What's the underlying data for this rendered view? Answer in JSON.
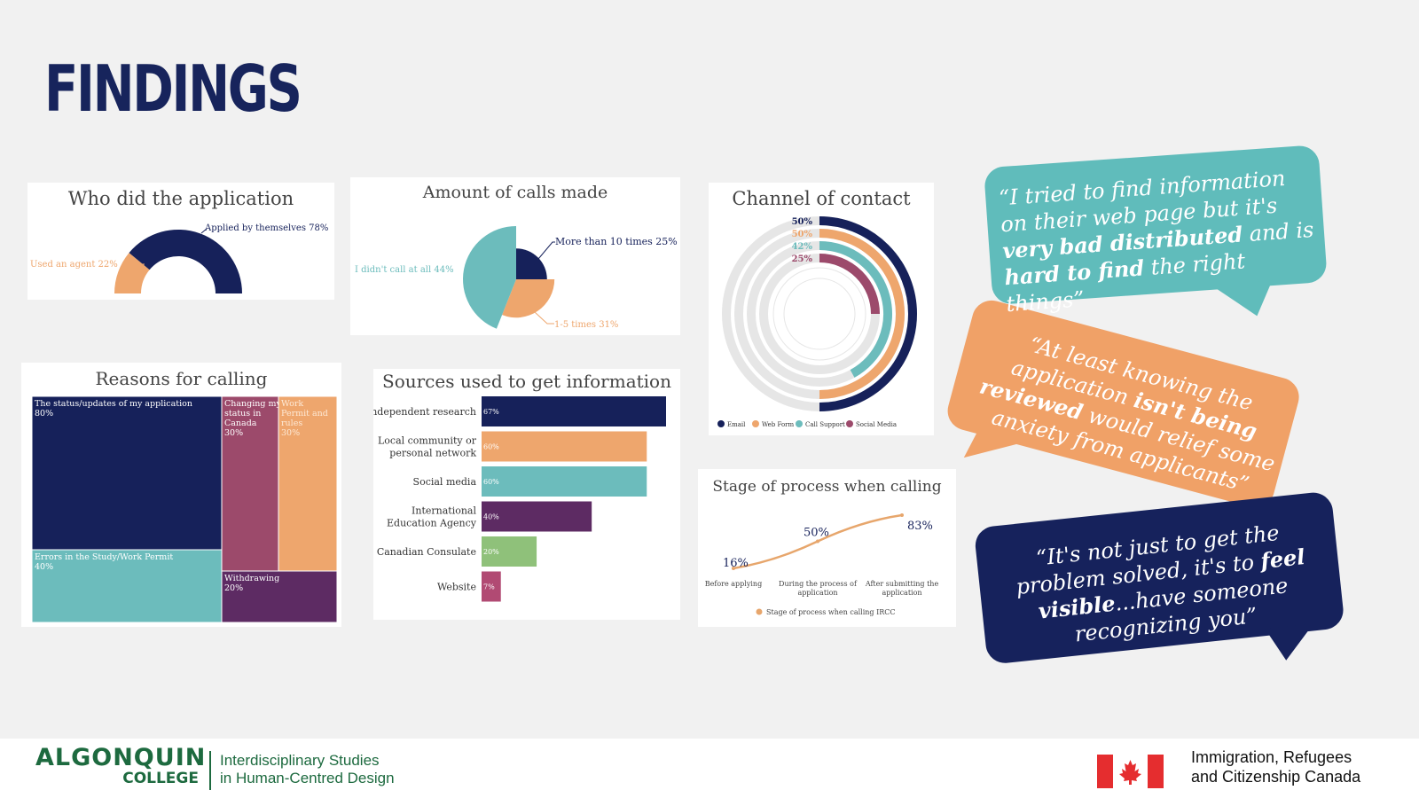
{
  "page": {
    "title": "FINDINGS"
  },
  "colors": {
    "navy": "#16215a",
    "orange": "#eea66d",
    "teal": "#6cbcbc",
    "purple": "#5d2b63",
    "mauve": "#9c4a6b",
    "green": "#8fc17a",
    "pink": "#b14a73"
  },
  "chart_data": [
    {
      "id": "who-applied",
      "type": "pie",
      "title": "Who did the application",
      "slices": [
        {
          "label": "Used an agent 22%",
          "value": 22,
          "color": "#eea66d"
        },
        {
          "label": "Applied by themselves 78%",
          "value": 78,
          "color": "#16215a"
        }
      ]
    },
    {
      "id": "calls-made",
      "type": "pie",
      "title": "Amount of calls made",
      "slices": [
        {
          "label": "More than 10 times 25%",
          "value": 25,
          "color": "#16215a"
        },
        {
          "label": "1-5 times 31%",
          "value": 31,
          "color": "#eea66d"
        },
        {
          "label": "I didn't call at all 44%",
          "value": 44,
          "color": "#6cbcbc"
        }
      ]
    },
    {
      "id": "channel",
      "type": "radial-bar",
      "title": "Channel of contact",
      "categories": [
        "Email",
        "Web Form",
        "Call Support",
        "Social Media"
      ],
      "values": [
        50,
        50,
        42,
        25
      ],
      "value_labels": [
        "50%",
        "50%",
        "42%",
        "25%"
      ],
      "colors": [
        "#16215a",
        "#eea66d",
        "#6cbcbc",
        "#9c4a6b"
      ],
      "max": 100
    },
    {
      "id": "reasons",
      "type": "treemap",
      "title": "Reasons for calling",
      "cells": [
        {
          "label": "The status/updates of my application",
          "value": "80%",
          "color": "#16215a"
        },
        {
          "label": "Changing my status in Canada",
          "value": "30%",
          "color": "#9c4a6b"
        },
        {
          "label": "Work Permit and rules",
          "value": "30%",
          "color": "#eea66d"
        },
        {
          "label": "Errors in the Study/Work Permit",
          "value": "40%",
          "color": "#6cbcbc"
        },
        {
          "label": "Withdrawing",
          "value": "20%",
          "color": "#5d2b63"
        }
      ]
    },
    {
      "id": "sources",
      "type": "bar",
      "orientation": "horizontal",
      "title": "Sources used to get information",
      "categories": [
        "Independent research",
        "Local community or personal network",
        "Social media",
        "International Education Agency",
        "Canadian Consulate",
        "Website"
      ],
      "values": [
        67,
        60,
        60,
        40,
        20,
        7
      ],
      "value_labels": [
        "67%",
        "60%",
        "60%",
        "40%",
        "20%",
        "7%"
      ],
      "colors": [
        "#16215a",
        "#eea66d",
        "#6cbcbc",
        "#5d2b63",
        "#8fc17a",
        "#b14a73"
      ]
    },
    {
      "id": "stage",
      "type": "line",
      "title": "Stage of process when calling",
      "categories": [
        "Before applying",
        "During the process of application",
        "After submitting the application"
      ],
      "series": [
        {
          "name": "Stage of process when calling IRCC",
          "values": [
            16,
            50,
            83
          ],
          "color": "#e7a66c"
        }
      ],
      "value_labels": [
        "16%",
        "50%",
        "83%"
      ]
    }
  ],
  "quotes": [
    {
      "open": "“I tried to find information on their web page but it's ",
      "b1": "very bad distributed",
      "mid": " and is ",
      "b2": "hard to find",
      "close": " the right things”"
    },
    {
      "open": "“At least knowing the application ",
      "b1": "isn't being reviewed",
      "mid": " would relief some anxiety from applicants”"
    },
    {
      "open": "“It's not just to get the problem solved, it's to ",
      "b1": "feel visible",
      "mid": "...have someone recognizing you”"
    }
  ],
  "footer": {
    "college": "ALGONQUIN",
    "college_sub": "COLLEGE",
    "program_line1": "Interdisciplinary Studies",
    "program_line2": "in Human-Centred Design",
    "gov_line1": "Immigration, Refugees",
    "gov_line2": "and Citizenship Canada"
  }
}
